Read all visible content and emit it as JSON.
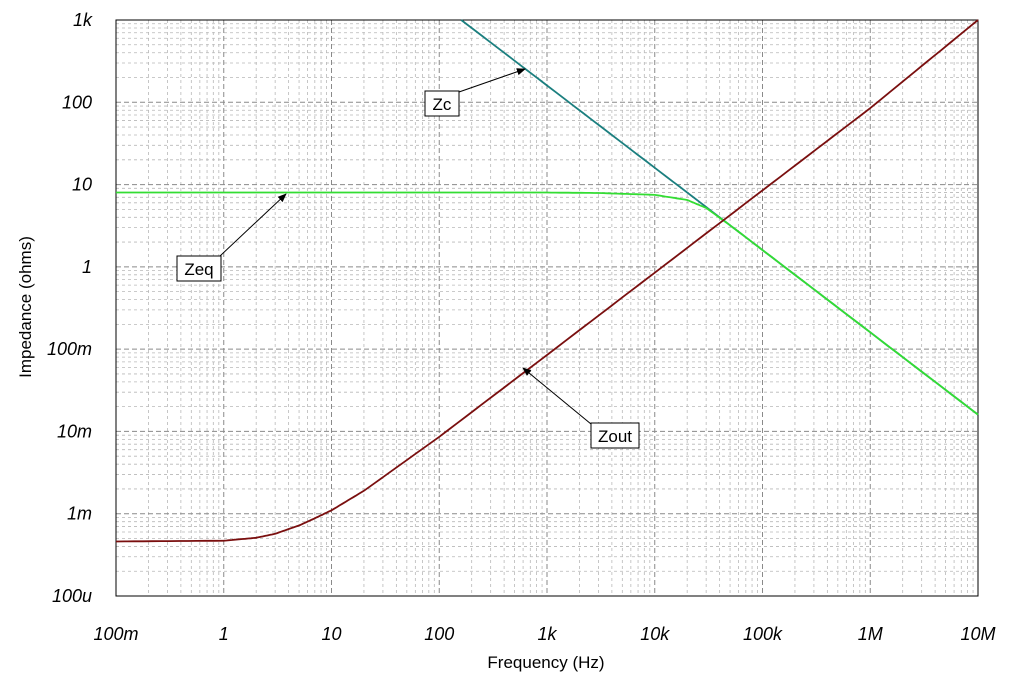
{
  "chart_data": {
    "type": "line",
    "xlabel": "Frequency (Hz)",
    "ylabel": "Impedance (ohms)",
    "x_scale": "log",
    "y_scale": "log",
    "xlim": [
      0.1,
      10000000
    ],
    "ylim": [
      0.0001,
      1000
    ],
    "grid": true,
    "x_ticks": [
      {
        "value": 0.1,
        "label": "100m"
      },
      {
        "value": 1,
        "label": "1"
      },
      {
        "value": 10,
        "label": "10"
      },
      {
        "value": 100,
        "label": "100"
      },
      {
        "value": 1000,
        "label": "1k"
      },
      {
        "value": 10000,
        "label": "10k"
      },
      {
        "value": 100000,
        "label": "100k"
      },
      {
        "value": 1000000,
        "label": "1M"
      },
      {
        "value": 10000000,
        "label": "10M"
      }
    ],
    "y_ticks": [
      {
        "value": 0.0001,
        "label": "100u"
      },
      {
        "value": 0.001,
        "label": "1m"
      },
      {
        "value": 0.01,
        "label": "10m"
      },
      {
        "value": 0.1,
        "label": "100m"
      },
      {
        "value": 1,
        "label": "1"
      },
      {
        "value": 10,
        "label": "10"
      },
      {
        "value": 100,
        "label": "100"
      },
      {
        "value": 1000,
        "label": "1k"
      }
    ],
    "series": [
      {
        "name": "Zc",
        "color": "#1b7f7f",
        "x": [
          160,
          1000,
          10000,
          50000,
          100000,
          1000000,
          10000000
        ],
        "y": [
          1000,
          160,
          16,
          3.2,
          1.6,
          0.16,
          0.016
        ]
      },
      {
        "name": "Zeq",
        "color": "#33dd33",
        "x": [
          0.1,
          1,
          100,
          1000,
          3000,
          10000,
          20000,
          30000,
          50000,
          100000,
          1000000,
          10000000
        ],
        "y": [
          8,
          8,
          8,
          8,
          7.9,
          7.5,
          6.5,
          5.2,
          3.2,
          1.6,
          0.16,
          0.016
        ]
      },
      {
        "name": "Zout",
        "color": "#7a0f0f",
        "x": [
          0.1,
          1,
          2,
          3,
          5,
          7,
          10,
          20,
          100,
          1000,
          10000,
          100000,
          1000000,
          10000000
        ],
        "y": [
          0.00046,
          0.00047,
          0.00051,
          0.00057,
          0.00072,
          0.00088,
          0.0011,
          0.0019,
          0.0086,
          0.085,
          0.85,
          8.5,
          85,
          1000
        ]
      }
    ],
    "annotations": [
      {
        "text": "Zc",
        "target": [
          650,
          260
        ]
      },
      {
        "text": "Zeq",
        "target": [
          4,
          8
        ]
      },
      {
        "text": "Zout",
        "target": [
          600,
          0.06
        ]
      }
    ]
  }
}
